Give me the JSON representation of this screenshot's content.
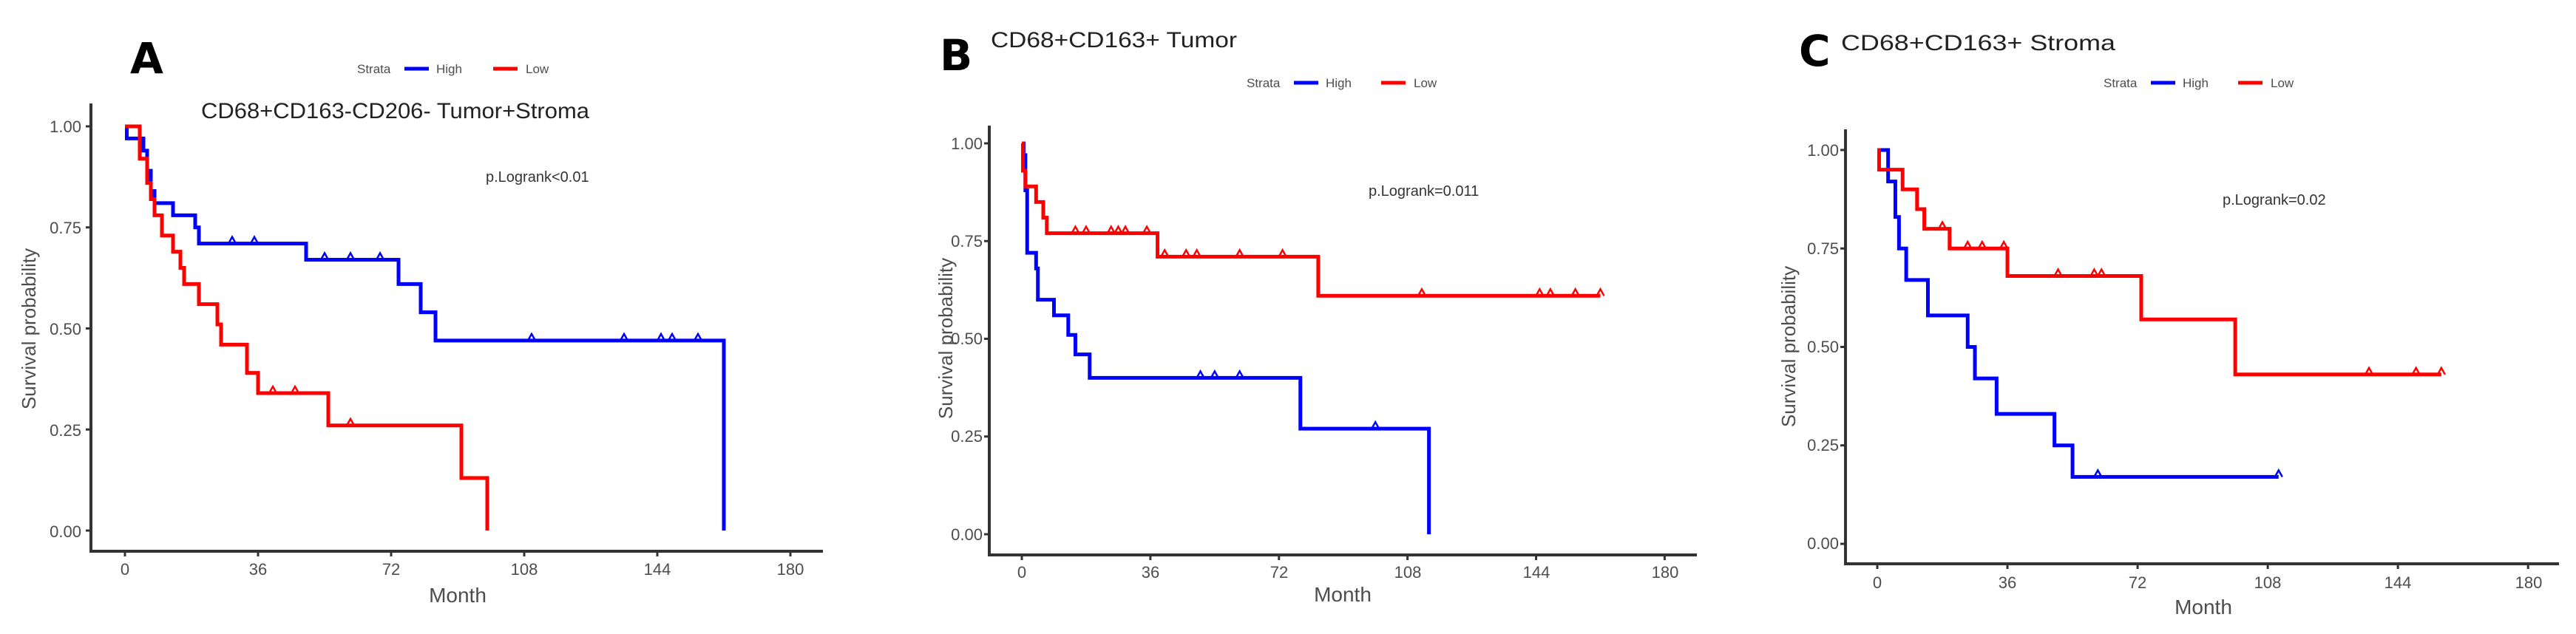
{
  "figure": {
    "legend": {
      "title": "Strata",
      "entries": [
        "High",
        "Low"
      ]
    },
    "colors": {
      "High": "#0000FF",
      "Low": "#FF0000",
      "axis": "#333333",
      "text": "#4d4d4d"
    },
    "xlabel": "Month",
    "ylabel": "Survival probability",
    "xticks": [
      "0",
      "36",
      "72",
      "108",
      "144",
      "180"
    ],
    "yticks": [
      "0.00",
      "0.25",
      "0.50",
      "0.75",
      "1.00"
    ]
  },
  "panels": [
    {
      "letter": "A",
      "title": "CD68+CD163-CD206- Tumor+Stroma",
      "pvalue": "p.Logrank<0.01"
    },
    {
      "letter": "B",
      "title": "CD68+CD163+ Tumor",
      "pvalue": "p.Logrank=0.011"
    },
    {
      "letter": "C",
      "title": "CD68+CD163+  Stroma",
      "pvalue": "p.Logrank=0.02"
    }
  ],
  "chart_data": [
    {
      "type": "line",
      "subtype": "kaplan-meier step",
      "panel": "A",
      "title": "CD68+CD163-CD206- Tumor+Stroma",
      "xlabel": "Month",
      "ylabel": "Survival probability",
      "xlim": [
        0,
        180
      ],
      "ylim": [
        0,
        1
      ],
      "xticks": [
        0,
        36,
        72,
        108,
        144,
        180
      ],
      "yticks": [
        0,
        0.25,
        0.5,
        0.75,
        1.0
      ],
      "legend": {
        "title": "Strata",
        "position": "top",
        "entries": [
          "High",
          "Low"
        ]
      },
      "annotation": "p.Logrank<0.01",
      "series": [
        {
          "name": "High",
          "color": "#0000FF",
          "x": [
            0,
            0.5,
            5,
            6,
            7,
            8,
            13,
            19,
            20,
            49,
            74,
            80,
            84,
            162
          ],
          "y": [
            1.0,
            0.97,
            0.94,
            0.89,
            0.84,
            0.81,
            0.78,
            0.75,
            0.71,
            0.67,
            0.61,
            0.54,
            0.47,
            0.0
          ],
          "censored_x": [
            29,
            35,
            54,
            61,
            69,
            110,
            135,
            145,
            148,
            155
          ]
        },
        {
          "name": "Low",
          "color": "#FF0000",
          "x": [
            0,
            4,
            6,
            7,
            8,
            10,
            13,
            15,
            16,
            20,
            25,
            26,
            33,
            36,
            55,
            91,
            98
          ],
          "y": [
            1.0,
            0.92,
            0.86,
            0.82,
            0.78,
            0.73,
            0.69,
            0.65,
            0.61,
            0.56,
            0.51,
            0.46,
            0.39,
            0.34,
            0.26,
            0.13,
            0.0
          ],
          "censored_x": [
            40,
            46,
            61
          ]
        }
      ]
    },
    {
      "type": "line",
      "subtype": "kaplan-meier step",
      "panel": "B",
      "title": "CD68+CD163+ Tumor",
      "xlabel": "Month",
      "ylabel": "Survival probability",
      "xlim": [
        0,
        180
      ],
      "ylim": [
        0,
        1
      ],
      "xticks": [
        0,
        36,
        72,
        108,
        144,
        180
      ],
      "yticks": [
        0,
        0.25,
        0.5,
        0.75,
        1.0
      ],
      "legend": {
        "title": "Strata",
        "position": "top",
        "entries": [
          "High",
          "Low"
        ]
      },
      "annotation": "p.Logrank=0.011",
      "series": [
        {
          "name": "High",
          "color": "#0000FF",
          "x": [
            0,
            0.5,
            1,
            1.5,
            4,
            4.5,
            9,
            13,
            15,
            19,
            78,
            114
          ],
          "y": [
            1.0,
            0.97,
            0.88,
            0.72,
            0.68,
            0.6,
            0.56,
            0.51,
            0.46,
            0.4,
            0.27,
            0.0
          ],
          "censored_x": [
            50,
            54,
            61,
            99
          ]
        },
        {
          "name": "Low",
          "color": "#FF0000",
          "x": [
            0,
            0.3,
            1,
            4,
            6,
            7,
            38,
            83,
            162
          ],
          "y": [
            1.0,
            0.93,
            0.89,
            0.85,
            0.81,
            0.77,
            0.71,
            0.61,
            0.61
          ],
          "censored_x": [
            15,
            18,
            25,
            27,
            29,
            35,
            40,
            46,
            49,
            61,
            73,
            112,
            145,
            148,
            155,
            162
          ]
        }
      ]
    },
    {
      "type": "line",
      "subtype": "kaplan-meier step",
      "panel": "C",
      "title": "CD68+CD163+  Stroma",
      "xlabel": "Month",
      "ylabel": "Survival probability",
      "xlim": [
        0,
        180
      ],
      "ylim": [
        0,
        1
      ],
      "xticks": [
        0,
        36,
        72,
        108,
        144,
        180
      ],
      "yticks": [
        0,
        0.25,
        0.5,
        0.75,
        1.0
      ],
      "legend": {
        "title": "Strata",
        "position": "top",
        "entries": [
          "High",
          "Low"
        ]
      },
      "annotation": "p.Logrank=0.02",
      "series": [
        {
          "name": "High",
          "color": "#0000FF",
          "x": [
            0,
            3,
            5,
            6,
            8,
            14,
            25,
            27,
            33,
            49,
            54,
            111
          ],
          "y": [
            1.0,
            0.92,
            0.83,
            0.75,
            0.67,
            0.58,
            0.5,
            0.42,
            0.33,
            0.25,
            0.17,
            0.17
          ],
          "censored_x": [
            61,
            111
          ]
        },
        {
          "name": "Low",
          "color": "#FF0000",
          "x": [
            0,
            0.5,
            7,
            11,
            13,
            20,
            36,
            73,
            99,
            156
          ],
          "y": [
            1.0,
            0.95,
            0.9,
            0.85,
            0.8,
            0.75,
            0.68,
            0.57,
            0.43,
            0.43
          ],
          "censored_x": [
            18,
            25,
            29,
            35,
            50,
            60,
            62,
            136,
            149,
            156
          ]
        }
      ]
    }
  ]
}
